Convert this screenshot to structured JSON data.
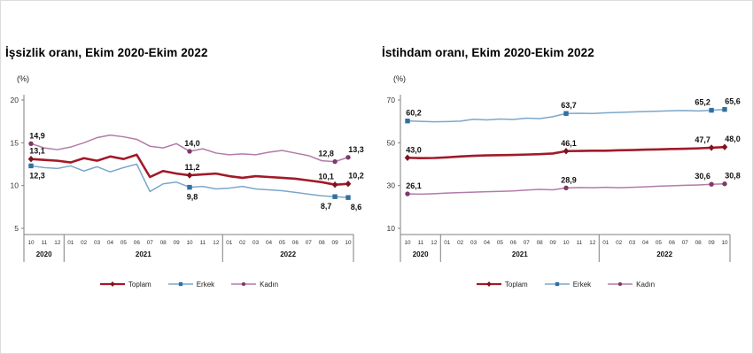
{
  "chart_data": [
    {
      "type": "line",
      "title": "İşsizlik oranı, Ekim 2020-Ekim 2022",
      "unit_label": "(%)",
      "categories_months": [
        "10",
        "11",
        "12",
        "01",
        "02",
        "03",
        "04",
        "05",
        "06",
        "07",
        "08",
        "09",
        "10",
        "11",
        "12",
        "01",
        "02",
        "03",
        "04",
        "05",
        "06",
        "07",
        "08",
        "09",
        "10"
      ],
      "year_groups": [
        {
          "label": "2020",
          "span": 3
        },
        {
          "label": "2021",
          "span": 12
        },
        {
          "label": "2022",
          "span": 10
        }
      ],
      "yticks": [
        5,
        10,
        15,
        20
      ],
      "ylim": [
        5,
        20
      ],
      "grid": false,
      "legend_position": "bottom",
      "labeled_indices": [
        0,
        12,
        23,
        24
      ],
      "series": [
        {
          "name": "Toplam",
          "color": "#A11A28",
          "marker_color": "#7E1220",
          "marker": "diamond",
          "line_width": 2.6,
          "label_side": "above",
          "values": [
            13.1,
            13.0,
            12.9,
            12.7,
            13.2,
            12.9,
            13.4,
            13.1,
            13.6,
            11.0,
            11.7,
            11.4,
            11.2,
            11.3,
            11.4,
            11.1,
            10.9,
            11.1,
            11.0,
            10.9,
            10.8,
            10.6,
            10.4,
            10.1,
            10.2
          ],
          "point_labels": [
            "13,1",
            "11,2",
            "10,1",
            "10,2"
          ]
        },
        {
          "name": "Erkek",
          "color": "#7BA7CB",
          "marker_color": "#31709F",
          "marker": "square",
          "line_width": 1.5,
          "label_side": "below",
          "values": [
            12.3,
            12.1,
            12.0,
            12.3,
            11.7,
            12.2,
            11.6,
            12.1,
            12.5,
            9.3,
            10.2,
            10.4,
            9.8,
            9.9,
            9.6,
            9.7,
            9.9,
            9.6,
            9.5,
            9.4,
            9.2,
            9.0,
            8.8,
            8.7,
            8.6
          ],
          "point_labels": [
            "12,3",
            "9,8",
            "8,7",
            "8,6"
          ]
        },
        {
          "name": "Kadın",
          "color": "#B37BA8",
          "marker_color": "#7C3A6B",
          "marker": "circle",
          "line_width": 1.5,
          "label_side": "above",
          "values": [
            14.9,
            14.4,
            14.2,
            14.5,
            15.0,
            15.6,
            15.9,
            15.7,
            15.4,
            14.6,
            14.4,
            14.9,
            14.0,
            14.3,
            13.8,
            13.6,
            13.7,
            13.6,
            13.9,
            14.1,
            13.8,
            13.5,
            12.9,
            12.8,
            13.3
          ],
          "point_labels": [
            "14,9",
            "14,0",
            "12,8",
            "13,3"
          ]
        }
      ]
    },
    {
      "type": "line",
      "title": "İstihdam oranı, Ekim 2020-Ekim 2022",
      "unit_label": "(%)",
      "categories_months": [
        "10",
        "11",
        "12",
        "01",
        "02",
        "03",
        "04",
        "05",
        "06",
        "07",
        "08",
        "09",
        "10",
        "11",
        "12",
        "01",
        "02",
        "03",
        "04",
        "05",
        "06",
        "07",
        "08",
        "09",
        "10"
      ],
      "year_groups": [
        {
          "label": "2020",
          "span": 3
        },
        {
          "label": "2021",
          "span": 12
        },
        {
          "label": "2022",
          "span": 10
        }
      ],
      "yticks": [
        10,
        30,
        50,
        70
      ],
      "ylim": [
        10,
        70
      ],
      "grid": false,
      "legend_position": "bottom",
      "labeled_indices": [
        0,
        12,
        23,
        24
      ],
      "series": [
        {
          "name": "Toplam",
          "color": "#A11A28",
          "marker_color": "#7E1220",
          "marker": "diamond",
          "line_width": 2.6,
          "label_side": "above",
          "values": [
            43.0,
            42.8,
            42.9,
            43.2,
            43.6,
            43.9,
            44.1,
            44.2,
            44.3,
            44.5,
            44.7,
            45.0,
            46.1,
            46.2,
            46.3,
            46.3,
            46.5,
            46.6,
            46.8,
            46.9,
            47.1,
            47.2,
            47.4,
            47.7,
            48.0
          ],
          "point_labels": [
            "43,0",
            "46,1",
            "47,7",
            "48,0"
          ]
        },
        {
          "name": "Erkek",
          "color": "#7BA7CB",
          "marker_color": "#31709F",
          "marker": "square",
          "line_width": 1.5,
          "label_side": "above",
          "values": [
            60.2,
            60.0,
            59.8,
            59.9,
            60.1,
            61.0,
            60.7,
            61.1,
            60.9,
            61.5,
            61.3,
            62.2,
            63.7,
            63.8,
            63.7,
            64.0,
            64.2,
            64.4,
            64.6,
            64.8,
            65.0,
            65.1,
            64.9,
            65.2,
            65.6
          ],
          "point_labels": [
            "60,2",
            "63,7",
            "65,2",
            "65,6"
          ]
        },
        {
          "name": "Kadın",
          "color": "#B37BA8",
          "marker_color": "#7C3A6B",
          "marker": "circle",
          "line_width": 1.5,
          "label_side": "above",
          "values": [
            26.1,
            26.0,
            26.2,
            26.5,
            26.7,
            26.9,
            27.1,
            27.3,
            27.5,
            27.9,
            28.2,
            28.0,
            28.9,
            29.1,
            29.0,
            29.2,
            29.0,
            29.2,
            29.4,
            29.7,
            29.9,
            30.1,
            30.3,
            30.6,
            30.8
          ],
          "point_labels": [
            "26,1",
            "28,9",
            "30,6",
            "30,8"
          ]
        }
      ]
    }
  ]
}
